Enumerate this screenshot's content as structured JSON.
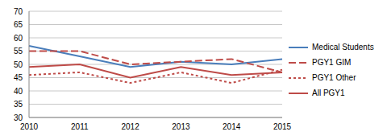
{
  "chart_data": {
    "type": "line",
    "categories": [
      "2010",
      "2011",
      "2012",
      "2013",
      "2014",
      "2015"
    ],
    "series": [
      {
        "name": "Medical Students",
        "color": "#4a7ebb",
        "line_style": "solid",
        "values": [
          57,
          53,
          49,
          51,
          50,
          52
        ]
      },
      {
        "name": "PGY1 GIM",
        "color": "#be4b48",
        "line_style": "dashed",
        "values": [
          55,
          55,
          50,
          51,
          52,
          47
        ]
      },
      {
        "name": "PGY1 Other",
        "color": "#be4b48",
        "line_style": "dotted",
        "values": [
          46,
          47,
          43,
          47,
          43,
          48
        ]
      },
      {
        "name": "All PGY1",
        "color": "#be4b48",
        "line_style": "solid",
        "values": [
          49,
          50,
          45,
          49,
          46,
          47
        ]
      }
    ],
    "ylim": [
      30,
      70
    ],
    "yticks": [
      30,
      35,
      40,
      45,
      50,
      55,
      60,
      65,
      70
    ],
    "grid": true,
    "legend": "right"
  }
}
